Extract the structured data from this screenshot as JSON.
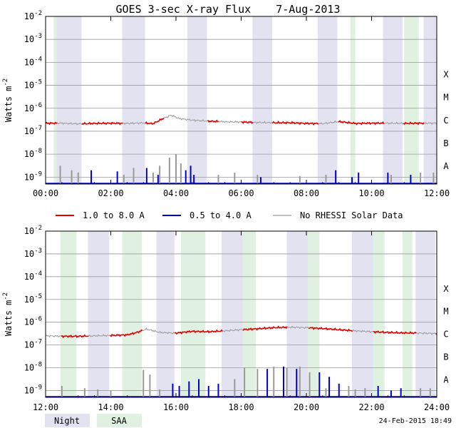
{
  "chart_data": {
    "type": "line",
    "title": "GOES 3-sec X-ray Flux",
    "date": "7-Aug-2013",
    "ylabel_main": "Watts m",
    "ylabel_exp": "-2",
    "yscale": "log",
    "ylim_exp": [
      -9.3,
      -2
    ],
    "ytick_exponents": [
      -2,
      -3,
      -4,
      -5,
      -6,
      -7,
      -8,
      -9
    ],
    "ytick_base": "10",
    "class_labels": [
      {
        "label": "X",
        "exp": -4
      },
      {
        "label": "M",
        "exp": -5
      },
      {
        "label": "C",
        "exp": -6
      },
      {
        "label": "B",
        "exp": -7
      },
      {
        "label": "A",
        "exp": -8
      }
    ],
    "legend": [
      {
        "label": "1.0 to 8.0 A",
        "color": "#dd0000"
      },
      {
        "label": "0.5 to 4.0 A",
        "color": "#0000cc"
      },
      {
        "label": "No RHESSI Solar Data",
        "color": "#999999"
      }
    ],
    "bottom_legend": [
      {
        "label": "Night",
        "color": "#e2e2f0"
      },
      {
        "label": "SAA",
        "color": "#e1f1e1"
      }
    ],
    "timestamp": "24-Feb-2015 18:49",
    "panels": [
      {
        "xlim_hours": [
          0,
          12
        ],
        "xticks": [
          "00:00",
          "02:00",
          "04:00",
          "06:00",
          "08:00",
          "10:00",
          "12:00"
        ],
        "night_intervals": [
          [
            0.35,
            1.1
          ],
          [
            2.35,
            3.05
          ],
          [
            4.35,
            4.95
          ],
          [
            6.35,
            6.95
          ],
          [
            8.35,
            8.95
          ],
          [
            10.35,
            10.95
          ],
          [
            11.6,
            12.0
          ]
        ],
        "saa_intervals": [
          [
            0.25,
            0.35
          ],
          [
            9.35,
            9.5
          ],
          [
            11.0,
            11.45
          ]
        ],
        "long_channel": {
          "x": [
            0,
            0.5,
            1,
            1.5,
            2,
            2.5,
            3,
            3.3,
            3.6,
            3.85,
            4.1,
            4.5,
            5,
            5.5,
            6,
            6.5,
            7,
            7.5,
            8,
            8.5,
            9,
            9.5,
            10,
            10.5,
            11,
            11.5,
            12
          ],
          "log_values": [
            -6.65,
            -6.65,
            -6.68,
            -6.66,
            -6.65,
            -6.66,
            -6.64,
            -6.67,
            -6.45,
            -6.3,
            -6.45,
            -6.52,
            -6.56,
            -6.59,
            -6.6,
            -6.62,
            -6.63,
            -6.63,
            -6.66,
            -6.67,
            -6.58,
            -6.66,
            -6.65,
            -6.65,
            -6.66,
            -6.65,
            -6.65
          ],
          "no_data_hours": [
            [
              0.35,
              1.1
            ],
            [
              2.35,
              3.05
            ],
            [
              3.6,
              4.35
            ],
            [
              4.35,
              4.95
            ],
            [
              5.3,
              6.0
            ],
            [
              6.35,
              6.95
            ],
            [
              8.35,
              8.95
            ],
            [
              10.35,
              10.95
            ],
            [
              11.6,
              12.0
            ]
          ]
        },
        "short_channel": {
          "baseline_log": -9.3,
          "gray_spikes": [
            [
              0.45,
              -8.5
            ],
            [
              0.8,
              -8.7
            ],
            [
              1.0,
              -8.8
            ],
            [
              2.4,
              -8.9
            ],
            [
              2.7,
              -8.6
            ],
            [
              3.3,
              -8.8
            ],
            [
              3.5,
              -8.5
            ],
            [
              3.8,
              -8.15
            ],
            [
              4.0,
              -8.0
            ],
            [
              4.15,
              -8.4
            ],
            [
              5.3,
              -8.9
            ],
            [
              5.8,
              -8.8
            ],
            [
              6.5,
              -8.9
            ],
            [
              7.8,
              -8.95
            ],
            [
              8.6,
              -8.9
            ],
            [
              10.6,
              -8.9
            ],
            [
              11.5,
              -8.8
            ],
            [
              11.9,
              -8.8
            ]
          ],
          "blue_spikes": [
            [
              1.4,
              -8.7
            ],
            [
              2.2,
              -8.75
            ],
            [
              3.1,
              -8.6
            ],
            [
              3.45,
              -8.9
            ],
            [
              4.3,
              -8.7
            ],
            [
              4.45,
              -8.5
            ],
            [
              4.55,
              -8.9
            ],
            [
              6.6,
              -9.0
            ],
            [
              8.9,
              -8.7
            ],
            [
              9.4,
              -9.0
            ],
            [
              9.6,
              -8.8
            ],
            [
              10.5,
              -8.8
            ],
            [
              11.2,
              -8.9
            ]
          ]
        }
      },
      {
        "xlim_hours": [
          12,
          24
        ],
        "xticks": [
          "12:00",
          "14:00",
          "16:00",
          "18:00",
          "20:00",
          "22:00",
          "24:00"
        ],
        "night_intervals": [
          [
            13.3,
            13.95
          ],
          [
            15.4,
            15.95
          ],
          [
            17.4,
            18.05
          ],
          [
            19.4,
            20.05
          ],
          [
            21.4,
            22.05
          ],
          [
            23.35,
            23.95
          ]
        ],
        "saa_intervals": [
          [
            12.45,
            12.95
          ],
          [
            14.35,
            14.95
          ],
          [
            16.15,
            16.9
          ],
          [
            18.05,
            18.45
          ],
          [
            20.05,
            20.4
          ],
          [
            22.05,
            22.4
          ],
          [
            22.95,
            23.25
          ]
        ],
        "long_channel": {
          "x": [
            12,
            12.5,
            13,
            13.5,
            14,
            14.5,
            14.8,
            15.1,
            15.5,
            16,
            16.5,
            17,
            17.5,
            18,
            18.5,
            19,
            19.5,
            20,
            20.5,
            21,
            21.5,
            22,
            22.5,
            23,
            23.5,
            24
          ],
          "log_values": [
            -6.6,
            -6.62,
            -6.62,
            -6.6,
            -6.58,
            -6.56,
            -6.45,
            -6.3,
            -6.45,
            -6.48,
            -6.4,
            -6.42,
            -6.38,
            -6.33,
            -6.29,
            -6.24,
            -6.22,
            -6.24,
            -6.28,
            -6.33,
            -6.38,
            -6.42,
            -6.45,
            -6.47,
            -6.48,
            -6.5
          ],
          "no_data_hours": [
            [
              12.0,
              12.45
            ],
            [
              13.3,
              13.95
            ],
            [
              14.95,
              15.4
            ],
            [
              15.4,
              15.95
            ],
            [
              17.4,
              18.05
            ],
            [
              19.4,
              20.05
            ],
            [
              21.4,
              22.05
            ],
            [
              23.35,
              23.95
            ]
          ]
        },
        "short_channel": {
          "baseline_log": -9.3,
          "gray_spikes": [
            [
              12.5,
              -8.8
            ],
            [
              13.2,
              -8.9
            ],
            [
              13.6,
              -8.95
            ],
            [
              14.0,
              -9.0
            ],
            [
              15.0,
              -8.1
            ],
            [
              15.2,
              -8.3
            ],
            [
              15.5,
              -8.95
            ],
            [
              17.8,
              -8.5
            ],
            [
              18.1,
              -8.0
            ],
            [
              18.5,
              -8.05
            ],
            [
              19.0,
              -7.95
            ],
            [
              19.4,
              -8.0
            ],
            [
              19.8,
              -7.95
            ],
            [
              20.1,
              -8.2
            ],
            [
              20.6,
              -8.9
            ],
            [
              21.3,
              -8.8
            ],
            [
              21.5,
              -8.95
            ],
            [
              21.8,
              -8.9
            ],
            [
              23.5,
              -8.9
            ],
            [
              23.8,
              -8.9
            ]
          ],
          "blue_spikes": [
            [
              15.9,
              -8.7
            ],
            [
              16.1,
              -8.8
            ],
            [
              16.4,
              -8.6
            ],
            [
              16.7,
              -8.5
            ],
            [
              17.0,
              -8.8
            ],
            [
              17.3,
              -8.7
            ],
            [
              18.8,
              -8.05
            ],
            [
              19.3,
              -7.95
            ],
            [
              19.7,
              -8.05
            ],
            [
              20.4,
              -8.2
            ],
            [
              20.7,
              -8.4
            ],
            [
              21.0,
              -8.7
            ],
            [
              22.2,
              -8.8
            ],
            [
              22.6,
              -9.0
            ],
            [
              22.9,
              -8.9
            ]
          ]
        }
      }
    ]
  }
}
